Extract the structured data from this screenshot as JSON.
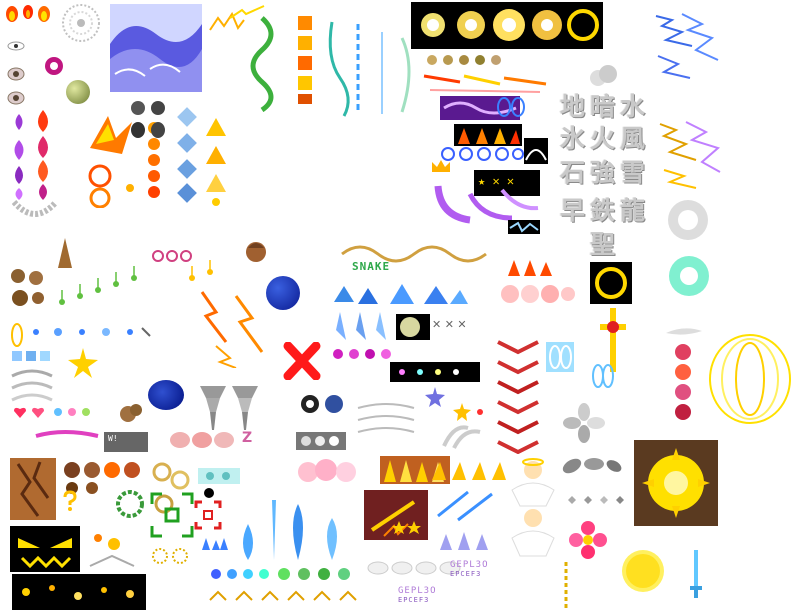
{
  "kanji": {
    "row1": [
      "地",
      "暗",
      "水"
    ],
    "row2": [
      "氷",
      "火",
      "風"
    ],
    "row3": [
      "石",
      "強",
      "雪"
    ],
    "row4": [
      "早",
      "鉄",
      "龍"
    ],
    "row5": [
      "聖"
    ]
  },
  "labels": {
    "snake_text": "SNAKE",
    "small_box_text": "W!",
    "ring_letter": "Z",
    "pixel_caption_1": "GEPL3O",
    "pixel_caption_2": "GEPL3O",
    "pixel_caption_sub_1": "EPCEF3",
    "pixel_caption_sub_2": "EPCEF3",
    "cross_marks": "✕ ✕ ✕",
    "star_marks": "★ ✕ ✕"
  },
  "icons": [
    "fire-icon",
    "swirl-icon",
    "wave-icon",
    "eye-icon",
    "paw-icon",
    "gem-icon",
    "music-note-icon",
    "lightning-icon",
    "red-x-icon",
    "tornado-icon",
    "ring-icon",
    "sun-icon",
    "cross-icon",
    "flower-icon",
    "sword-icon",
    "angel-icon",
    "star-icon"
  ],
  "colors": {
    "fire": "#ff6a00",
    "gold": "#ffd800",
    "ice": "#4aa8ff",
    "purple": "#9b3ad6",
    "red_x": "#ff1a1a",
    "blue_orb": "#1a3fbf",
    "kanji_gray": "#c9c9c9"
  }
}
